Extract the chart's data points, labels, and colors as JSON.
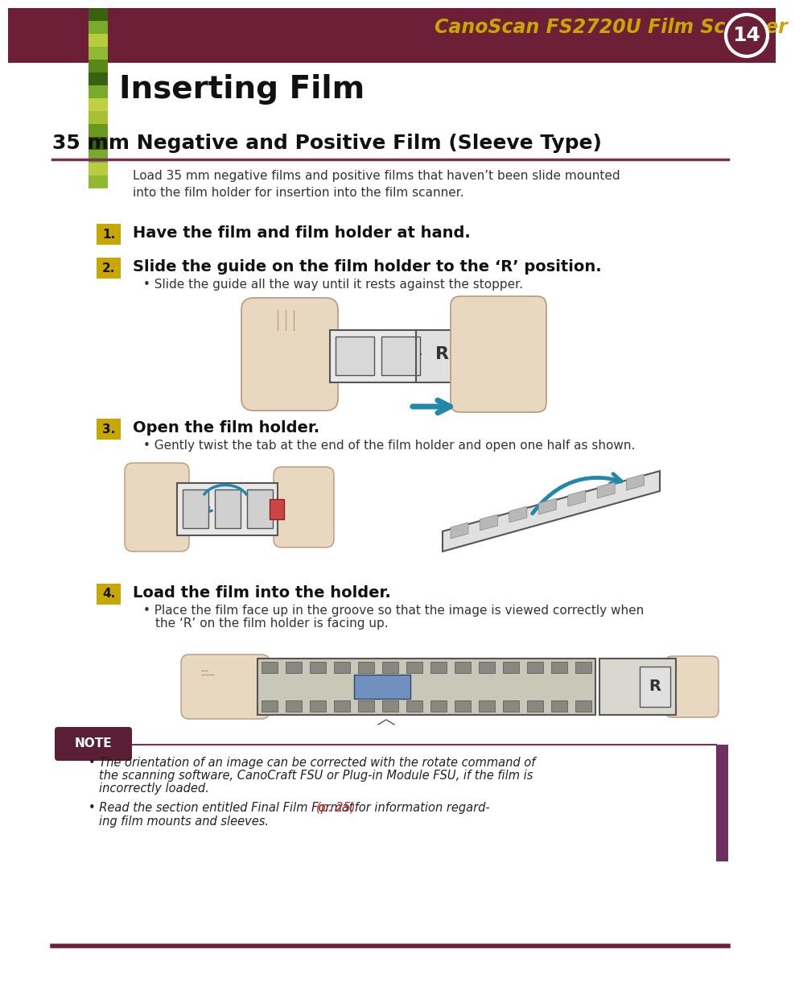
{
  "bg_color": "#ffffff",
  "header_bg": "#6d1f38",
  "header_text": "CanoScan FS2720U Film Scanner",
  "header_text_color": "#c8a800",
  "page_num": "14",
  "page_num_color": "#ffffff",
  "title_main": "Inserting Film",
  "section_title": "35 mm Negative and Positive Film (Sleeve Type)",
  "section_line_color": "#7a3050",
  "intro_text": "Load 35 mm negative films and positive films that haven’t been slide mounted\ninto the film holder for insertion into the film scanner.",
  "step1_text": "Have the film and film holder at hand.",
  "step2_text": "Slide the guide on the film holder to the ‘R’ position.",
  "step2_bullet": "Slide the guide all the way until it rests against the stopper.",
  "step3_text": "Open the film holder.",
  "step3_bullet": "Gently twist the tab at the end of the film holder and open one half as shown.",
  "step4_text": "Load the film into the holder.",
  "step4_bullet1": "Place the film face up in the groove so that the image is viewed correctly when",
  "step4_bullet2": "the ‘R’ on the film holder is facing up.",
  "note_label": "NOTE",
  "note_label_bg": "#5a1a1a",
  "note_label_color": "#ffffff",
  "note_bullet1_line1": "The orientation of an image can be corrected with the rotate command of",
  "note_bullet1_line2": "the scanning software, CanoCraft FSU or Plug-in Module FSU, if the film is",
  "note_bullet1_line3": "incorrectly loaded.",
  "note_bullet2_pre": "Read the section entitled Final Film Format ",
  "note_bullet2_link": "(p. 25)",
  "note_bullet2_post1": " for information regard-",
  "note_bullet2_post2": "ing film mounts and sleeves.",
  "note_link_color": "#cc2222",
  "step_num_bg": "#c8a800",
  "accent_bar_color": "#6d1f38",
  "sidebar_right_color": "#6d3060",
  "skin_color": "#e8d8c0",
  "skin_edge": "#b8987c",
  "holder_fill": "#e8e8e8",
  "holder_edge": "#555555",
  "teal_arrow": "#2288aa"
}
